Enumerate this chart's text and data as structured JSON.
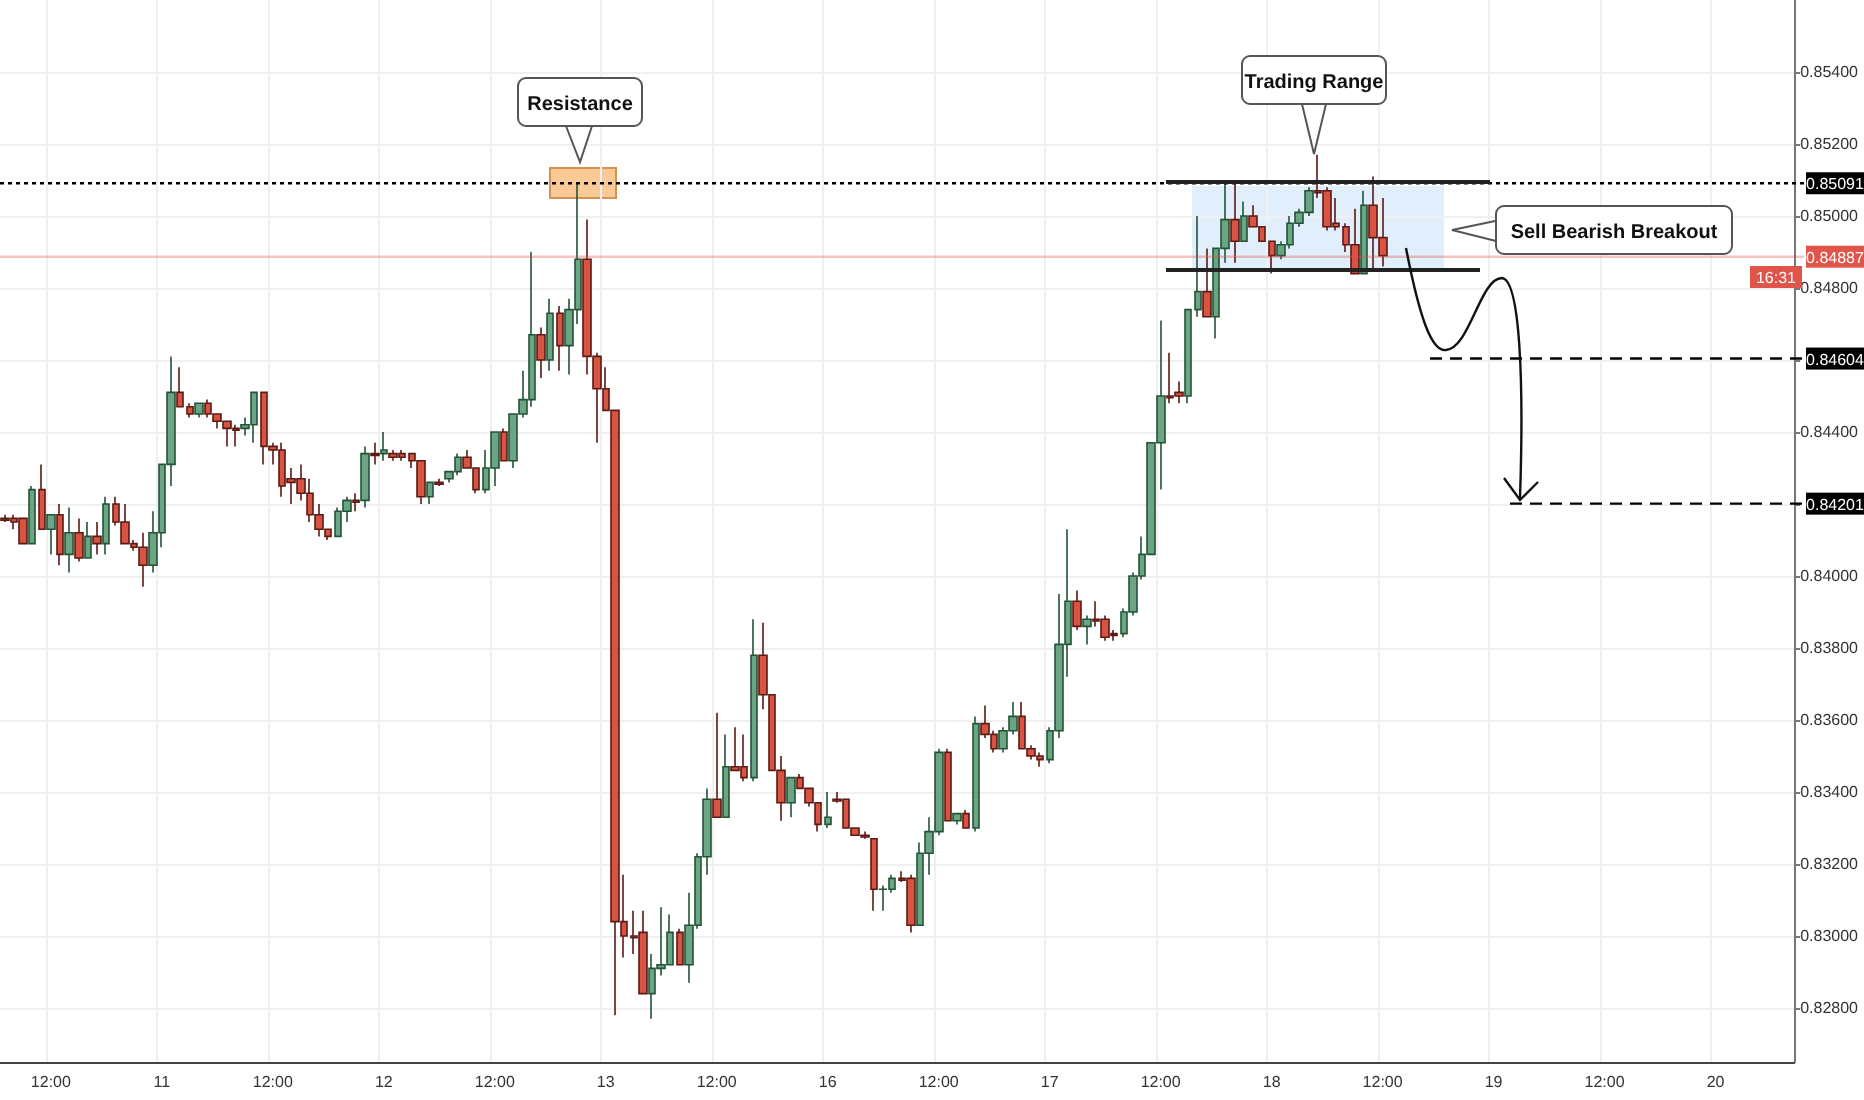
{
  "chart_data": {
    "type": "candlestick",
    "grid": true,
    "categories": [
      null,
      null,
      null,
      null,
      null,
      "12:00",
      null,
      null,
      null,
      null,
      null,
      null,
      null,
      null,
      null,
      null,
      null,
      "11",
      null,
      null,
      null,
      null,
      null,
      null,
      null,
      null,
      null,
      null,
      null,
      "12:00",
      null,
      null,
      null,
      null,
      null,
      null,
      null,
      null,
      null,
      null,
      null,
      "12",
      null,
      null,
      null,
      null,
      null,
      null,
      null,
      null,
      null,
      null,
      null,
      "12:00",
      null,
      null,
      null,
      null,
      null,
      null,
      null,
      null,
      null,
      null,
      null,
      "13",
      null,
      null,
      null,
      null,
      null,
      null,
      null,
      null,
      null,
      null,
      null,
      "12:00",
      null,
      null,
      null,
      null,
      null,
      null,
      null,
      null,
      null,
      null,
      null,
      "16",
      null,
      null,
      null,
      null,
      null,
      null,
      null,
      null,
      null,
      null,
      null,
      "12:00",
      null,
      null,
      null,
      null,
      null,
      null,
      null,
      null,
      null,
      null,
      null,
      "17",
      null,
      null,
      null,
      null,
      null,
      null,
      null,
      null,
      null,
      null,
      null,
      "12:00",
      null,
      null,
      null,
      null,
      null,
      null,
      null,
      null,
      null,
      null,
      null,
      "18",
      null,
      null,
      null,
      null,
      null,
      null,
      null,
      null,
      null,
      null,
      null,
      "12:00",
      null,
      null,
      null,
      null,
      null,
      null,
      null,
      null,
      null,
      null,
      null,
      "19",
      null,
      null,
      null,
      null,
      null,
      null,
      null,
      null,
      null,
      null,
      null,
      "12:00",
      null,
      null,
      null,
      null,
      null,
      null,
      null,
      null,
      null,
      null,
      null,
      "20",
      null,
      null,
      null,
      null,
      null,
      null,
      null,
      null
    ],
    "ohlc": [
      [
        0.8416,
        0.8417,
        0.8415,
        0.84155
      ],
      [
        0.8416,
        0.8417,
        0.8413,
        0.8415
      ],
      [
        0.8416,
        0.8416,
        0.8409,
        0.8409
      ],
      [
        0.8409,
        0.8425,
        0.8409,
        0.8424
      ],
      [
        0.8424,
        0.8431,
        0.8413,
        0.8413
      ],
      [
        0.8413,
        0.8417,
        0.8406,
        0.8417
      ],
      [
        0.8417,
        0.842,
        0.8403,
        0.8406
      ],
      [
        0.8406,
        0.8419,
        0.8401,
        0.8412
      ],
      [
        0.8412,
        0.8416,
        0.8404,
        0.8405
      ],
      [
        0.8405,
        0.8415,
        0.8405,
        0.8411
      ],
      [
        0.8411,
        0.8415,
        0.8406,
        0.8409
      ],
      [
        0.8409,
        0.8422,
        0.8406,
        0.842
      ],
      [
        0.842,
        0.8422,
        0.8414,
        0.8415
      ],
      [
        0.8415,
        0.842,
        0.8409,
        0.8409
      ],
      [
        0.8409,
        0.841,
        0.8407,
        0.8408
      ],
      [
        0.8408,
        0.8412,
        0.8397,
        0.8403
      ],
      [
        0.8403,
        0.8418,
        0.8401,
        0.8412
      ],
      [
        0.8412,
        0.8431,
        0.8408,
        0.8431
      ],
      [
        0.8431,
        0.8461,
        0.8425,
        0.8451
      ],
      [
        0.8451,
        0.8458,
        0.8447,
        0.8447
      ],
      [
        0.8447,
        0.8448,
        0.8444,
        0.8445
      ],
      [
        0.8445,
        0.8448,
        0.8444,
        0.8448
      ],
      [
        0.8448,
        0.8449,
        0.8444,
        0.8445
      ],
      [
        0.8445,
        0.8445,
        0.8441,
        0.8443
      ],
      [
        0.8443,
        0.8443,
        0.8436,
        0.8441
      ],
      [
        0.8441,
        0.8442,
        0.8436,
        0.84405
      ],
      [
        0.8441,
        0.8444,
        0.8439,
        0.8442
      ],
      [
        0.8442,
        0.8451,
        0.8437,
        0.8451
      ],
      [
        0.8451,
        0.8451,
        0.8431,
        0.8436
      ],
      [
        0.8436,
        0.8437,
        0.8431,
        0.8435
      ],
      [
        0.8435,
        0.8437,
        0.8422,
        0.8425
      ],
      [
        0.8427,
        0.843,
        0.842,
        0.8426
      ],
      [
        0.8427,
        0.8431,
        0.8421,
        0.8423
      ],
      [
        0.8423,
        0.8427,
        0.8415,
        0.8417
      ],
      [
        0.8417,
        0.842,
        0.8411,
        0.8413
      ],
      [
        0.8413,
        0.8413,
        0.841,
        0.8411
      ],
      [
        0.8411,
        0.8419,
        0.8411,
        0.8418
      ],
      [
        0.8418,
        0.8422,
        0.8415,
        0.8421
      ],
      [
        0.8421,
        0.8423,
        0.8418,
        0.84205
      ],
      [
        0.8421,
        0.8436,
        0.8419,
        0.8434
      ],
      [
        0.8434,
        0.8437,
        0.8431,
        0.84335
      ],
      [
        0.8434,
        0.844,
        0.8432,
        0.8435
      ],
      [
        0.8434,
        0.8435,
        0.8432,
        0.8433
      ],
      [
        0.8434,
        0.8435,
        0.8432,
        0.8433
      ],
      [
        0.8434,
        0.8434,
        0.843,
        0.8432
      ],
      [
        0.8432,
        0.8432,
        0.842,
        0.8422
      ],
      [
        0.8422,
        0.8426,
        0.842,
        0.8426
      ],
      [
        0.8426,
        0.8427,
        0.8425,
        0.84255
      ],
      [
        0.8427,
        0.8429,
        0.8426,
        0.8429
      ],
      [
        0.8429,
        0.8434,
        0.8428,
        0.8433
      ],
      [
        0.8433,
        0.8435,
        0.843,
        0.843
      ],
      [
        0.843,
        0.843,
        0.8423,
        0.8424
      ],
      [
        0.8424,
        0.8435,
        0.8423,
        0.843
      ],
      [
        0.843,
        0.844,
        0.8425,
        0.844
      ],
      [
        0.844,
        0.8441,
        0.8432,
        0.8432
      ],
      [
        0.8432,
        0.8445,
        0.843,
        0.8445
      ],
      [
        0.8445,
        0.8457,
        0.8444,
        0.8449
      ],
      [
        0.8449,
        0.849,
        0.8447,
        0.8467
      ],
      [
        0.8467,
        0.8469,
        0.8455,
        0.846
      ],
      [
        0.846,
        0.8477,
        0.8457,
        0.8473
      ],
      [
        0.8473,
        0.8475,
        0.8457,
        0.8464
      ],
      [
        0.8464,
        0.8477,
        0.8456,
        0.8474
      ],
      [
        0.8474,
        0.8509,
        0.847,
        0.8488
      ],
      [
        0.8488,
        0.8499,
        0.8456,
        0.8461
      ],
      [
        0.8461,
        0.8462,
        0.8437,
        0.8452
      ],
      [
        0.8452,
        0.8458,
        0.8446,
        0.8446
      ],
      [
        0.8446,
        0.8446,
        0.8278,
        0.8304
      ],
      [
        0.8304,
        0.8317,
        0.8294,
        0.83
      ],
      [
        0.83,
        0.8307,
        0.8295,
        0.82995
      ],
      [
        0.8301,
        0.8307,
        0.8284,
        0.8284
      ],
      [
        0.8284,
        0.8295,
        0.8277,
        0.8291
      ],
      [
        0.8291,
        0.8308,
        0.8289,
        0.8292
      ],
      [
        0.8292,
        0.8306,
        0.8292,
        0.8301
      ],
      [
        0.8301,
        0.8302,
        0.8292,
        0.8292
      ],
      [
        0.8292,
        0.8312,
        0.8287,
        0.8303
      ],
      [
        0.8303,
        0.8323,
        0.8302,
        0.8322
      ],
      [
        0.8322,
        0.8341,
        0.8317,
        0.8338
      ],
      [
        0.8338,
        0.8362,
        0.8333,
        0.8333
      ],
      [
        0.8333,
        0.8356,
        0.8333,
        0.8347
      ],
      [
        0.8347,
        0.8358,
        0.8346,
        0.8346
      ],
      [
        0.8347,
        0.8356,
        0.8343,
        0.8344
      ],
      [
        0.8344,
        0.8388,
        0.8343,
        0.8378
      ],
      [
        0.8378,
        0.8387,
        0.8363,
        0.8367
      ],
      [
        0.8367,
        0.8367,
        0.8346,
        0.8346
      ],
      [
        0.8346,
        0.835,
        0.8332,
        0.8337
      ],
      [
        0.8337,
        0.8344,
        0.8333,
        0.8344
      ],
      [
        0.8344,
        0.8345,
        0.8341,
        0.8341
      ],
      [
        0.8341,
        0.8341,
        0.8336,
        0.8337
      ],
      [
        0.8337,
        0.8337,
        0.8329,
        0.8331
      ],
      [
        0.8331,
        0.834,
        0.833,
        0.8333
      ],
      [
        0.8338,
        0.834,
        0.8337,
        0.83375
      ],
      [
        0.8338,
        0.8338,
        0.833,
        0.833
      ],
      [
        0.833,
        0.833,
        0.8328,
        0.8328
      ],
      [
        0.8328,
        0.8329,
        0.8327,
        0.83275
      ],
      [
        0.8327,
        0.8327,
        0.8307,
        0.8313
      ],
      [
        0.8313,
        0.8314,
        0.8307,
        0.8313
      ],
      [
        0.8313,
        0.8317,
        0.8312,
        0.8316
      ],
      [
        0.8316,
        0.8318,
        0.8315,
        0.83155
      ],
      [
        0.8316,
        0.8317,
        0.8301,
        0.8303
      ],
      [
        0.8303,
        0.8326,
        0.8303,
        0.8323
      ],
      [
        0.8323,
        0.8333,
        0.8317,
        0.8329
      ],
      [
        0.8329,
        0.8352,
        0.8328,
        0.8351
      ],
      [
        0.8351,
        0.8352,
        0.8332,
        0.8332
      ],
      [
        0.8332,
        0.8334,
        0.8331,
        0.8334
      ],
      [
        0.8334,
        0.8335,
        0.833,
        0.833
      ],
      [
        0.833,
        0.8361,
        0.8329,
        0.8359
      ],
      [
        0.8359,
        0.8364,
        0.8355,
        0.8356
      ],
      [
        0.8356,
        0.8357,
        0.8351,
        0.8352
      ],
      [
        0.8352,
        0.8358,
        0.8351,
        0.8357
      ],
      [
        0.8357,
        0.8365,
        0.8356,
        0.8361
      ],
      [
        0.8361,
        0.8365,
        0.8352,
        0.8352
      ],
      [
        0.8352,
        0.8353,
        0.8349,
        0.835
      ],
      [
        0.835,
        0.8351,
        0.8347,
        0.8349
      ],
      [
        0.8349,
        0.8358,
        0.8348,
        0.8357
      ],
      [
        0.8357,
        0.8395,
        0.8355,
        0.8381
      ],
      [
        0.8381,
        0.8413,
        0.8372,
        0.8393
      ],
      [
        0.8393,
        0.8396,
        0.8385,
        0.8386
      ],
      [
        0.8386,
        0.8389,
        0.8381,
        0.8388
      ],
      [
        0.8388,
        0.8393,
        0.8386,
        0.83875
      ],
      [
        0.8388,
        0.8389,
        0.8382,
        0.8383
      ],
      [
        0.8384,
        0.8385,
        0.8382,
        0.83835
      ],
      [
        0.8384,
        0.8391,
        0.8383,
        0.839
      ],
      [
        0.839,
        0.8401,
        0.8389,
        0.84
      ],
      [
        0.84,
        0.8411,
        0.8399,
        0.8406
      ],
      [
        0.8406,
        0.8437,
        0.8406,
        0.8437
      ],
      [
        0.8437,
        0.8471,
        0.8424,
        0.845
      ],
      [
        0.845,
        0.8462,
        0.8448,
        0.84495
      ],
      [
        0.8451,
        0.8454,
        0.8448,
        0.845
      ],
      [
        0.845,
        0.8474,
        0.8448,
        0.8474
      ],
      [
        0.8474,
        0.85,
        0.8472,
        0.8479
      ],
      [
        0.8479,
        0.8491,
        0.8472,
        0.8472
      ],
      [
        0.8472,
        0.8491,
        0.8466,
        0.8491
      ],
      [
        0.8491,
        0.851,
        0.8487,
        0.8499
      ],
      [
        0.8499,
        0.8509,
        0.8487,
        0.8493
      ],
      [
        0.8493,
        0.8504,
        0.8493,
        0.85
      ],
      [
        0.85,
        0.8503,
        0.8497,
        0.8497
      ],
      [
        0.8497,
        0.8497,
        0.8493,
        0.8493
      ],
      [
        0.8493,
        0.8493,
        0.8484,
        0.8489
      ],
      [
        0.8489,
        0.8493,
        0.8488,
        0.8492
      ],
      [
        0.8492,
        0.85,
        0.8491,
        0.8498
      ],
      [
        0.8498,
        0.8502,
        0.8497,
        0.8501
      ],
      [
        0.8501,
        0.8508,
        0.85,
        0.8507
      ],
      [
        0.8507,
        0.8517,
        0.8505,
        0.85065
      ],
      [
        0.8507,
        0.8508,
        0.8496,
        0.8497
      ],
      [
        0.8498,
        0.8505,
        0.8496,
        0.8497
      ],
      [
        0.8497,
        0.8498,
        0.849,
        0.8492
      ],
      [
        0.8492,
        0.8502,
        0.8484,
        0.8484
      ],
      [
        0.8484,
        0.8507,
        0.8484,
        0.8503
      ],
      [
        0.8503,
        0.8511,
        0.8485,
        0.8494
      ],
      [
        0.8494,
        0.8505,
        0.8486,
        0.8489
      ],
      null,
      null,
      null,
      null,
      null,
      null,
      null,
      null,
      null,
      null,
      null,
      null,
      null,
      null,
      null,
      null,
      null,
      null,
      null,
      null,
      null,
      null,
      null,
      null,
      null,
      null,
      null,
      null,
      null,
      null,
      null,
      null,
      null,
      null,
      null,
      null,
      null,
      null,
      null,
      null,
      null,
      null,
      null,
      null
    ],
    "ylim": [
      0.8265,
      0.856
    ],
    "yticks": [
      {
        "value": 0.828,
        "label": "0.82800"
      },
      {
        "value": 0.83,
        "label": "0.83000"
      },
      {
        "value": 0.832,
        "label": "0.83200"
      },
      {
        "value": 0.834,
        "label": "0.83400"
      },
      {
        "value": 0.836,
        "label": "0.83600"
      },
      {
        "value": 0.838,
        "label": "0.83800"
      },
      {
        "value": 0.84,
        "label": "0.84000"
      },
      {
        "value": 0.842,
        "label": null
      },
      {
        "value": 0.844,
        "label": "0.84400"
      },
      {
        "value": 0.846,
        "label": null
      },
      {
        "value": 0.848,
        "label": "0.84800"
      },
      {
        "value": 0.85,
        "label": "0.85000"
      },
      {
        "value": 0.852,
        "label": "0.85200"
      },
      {
        "value": 0.854,
        "label": "0.85400"
      }
    ],
    "ref_lines": [
      {
        "axis": "y",
        "value": 0.85091,
        "label": "0.85091",
        "color": "#000000",
        "line_style": "dotted"
      },
      {
        "axis": "y",
        "value": 0.84887,
        "label": "0.84887",
        "color": "#e0554a",
        "line_style": "solid"
      },
      {
        "axis": "y",
        "value": 0.84604,
        "label": "0.84604",
        "color": "#000000",
        "line_style": "dashed"
      },
      {
        "axis": "y",
        "value": 0.84201,
        "label": "0.84201",
        "color": "#000000",
        "line_style": "dashed"
      }
    ],
    "annotations": [
      "Resistance",
      "Trading Range",
      "Sell Bearish Breakout",
      "16:31"
    ]
  }
}
